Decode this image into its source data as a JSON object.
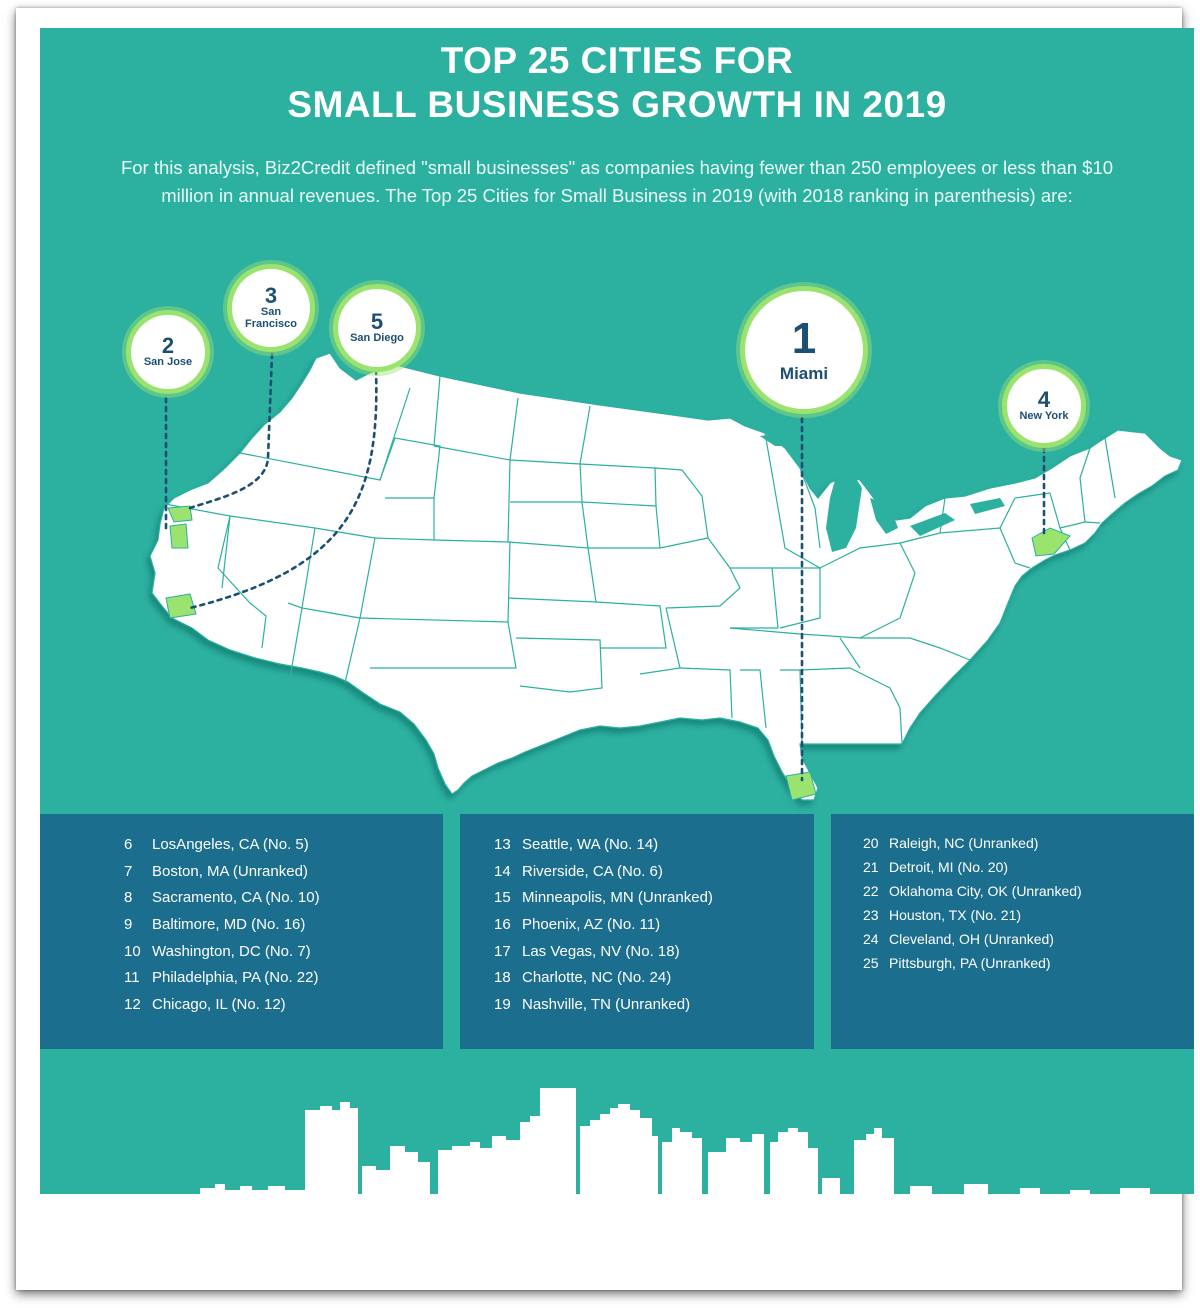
{
  "title": {
    "line1": "TOP 25 CITIES FOR",
    "line2": "SMALL BUSINESS GROWTH IN 2019"
  },
  "intro": "For this analysis, Biz2Credit defined \"small businesses\" as companies having fewer than 250 employees or less than $10 million in annual revenues.  The Top 25 Cities for Small Business in 2019 (with 2018 ranking in parenthesis) are:",
  "map": {
    "top5": [
      {
        "rank": "1",
        "city": "Miami"
      },
      {
        "rank": "2",
        "city": "San Jose"
      },
      {
        "rank": "3",
        "city": "San Francisco"
      },
      {
        "rank": "4",
        "city": "New York"
      },
      {
        "rank": "5",
        "city": "San Diego"
      }
    ]
  },
  "lists": {
    "col1": [
      {
        "rank": "6",
        "text": "LosAngeles, CA (No. 5)"
      },
      {
        "rank": "7",
        "text": "Boston, MA (Unranked)"
      },
      {
        "rank": "8",
        "text": "Sacramento, CA (No. 10)"
      },
      {
        "rank": "9",
        "text": "Baltimore, MD (No. 16)"
      },
      {
        "rank": "10",
        "text": "Washington, DC (No. 7)"
      },
      {
        "rank": "11",
        "text": "Philadelphia, PA (No. 22)"
      },
      {
        "rank": "12",
        "text": "Chicago, IL (No. 12)"
      }
    ],
    "col2": [
      {
        "rank": "13",
        "text": "Seattle, WA (No. 14)"
      },
      {
        "rank": "14",
        "text": "Riverside, CA (No. 6)"
      },
      {
        "rank": "15",
        "text": "Minneapolis, MN (Unranked)"
      },
      {
        "rank": "16",
        "text": "Phoenix, AZ (No. 11)"
      },
      {
        "rank": "17",
        "text": "Las Vegas, NV (No. 18)"
      },
      {
        "rank": "18",
        "text": "Charlotte, NC (No. 24)"
      },
      {
        "rank": "19",
        "text": "Nashville, TN (Unranked)"
      }
    ],
    "col3": [
      {
        "rank": "20",
        "text": "Raleigh, NC (Unranked)"
      },
      {
        "rank": "21",
        "text": "Detroit, MI (No. 20)"
      },
      {
        "rank": "22",
        "text": "Oklahoma City, OK (Unranked)"
      },
      {
        "rank": "23",
        "text": "Houston, TX (No. 21)"
      },
      {
        "rank": "24",
        "text": "Cleveland, OH (Unranked)"
      },
      {
        "rank": "25",
        "text": "Pittsburgh, PA (Unranked)"
      }
    ]
  },
  "colors": {
    "background": "#2cb0a0",
    "panel": "#1b6e8d",
    "highlight": "#9be36f",
    "bubble_text": "#1d4f73"
  }
}
